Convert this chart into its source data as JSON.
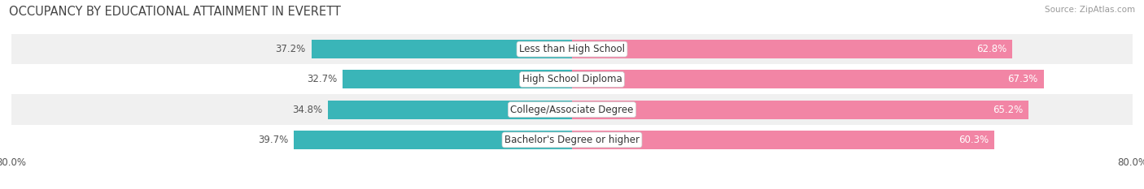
{
  "title": "OCCUPANCY BY EDUCATIONAL ATTAINMENT IN EVERETT",
  "source": "Source: ZipAtlas.com",
  "categories": [
    "Less than High School",
    "High School Diploma",
    "College/Associate Degree",
    "Bachelor's Degree or higher"
  ],
  "owner_pct": [
    37.2,
    32.7,
    34.8,
    39.7
  ],
  "renter_pct": [
    62.8,
    67.3,
    65.2,
    60.3
  ],
  "owner_color": "#3ab5b8",
  "renter_color": "#f285a5",
  "row_bg_colors": [
    "#f0f0f0",
    "#ffffff",
    "#f0f0f0",
    "#ffffff"
  ],
  "xlim_left": -80.0,
  "xlim_right": 80.0,
  "title_fontsize": 10.5,
  "label_fontsize": 8.5,
  "tick_fontsize": 8.5,
  "bar_height": 0.62
}
